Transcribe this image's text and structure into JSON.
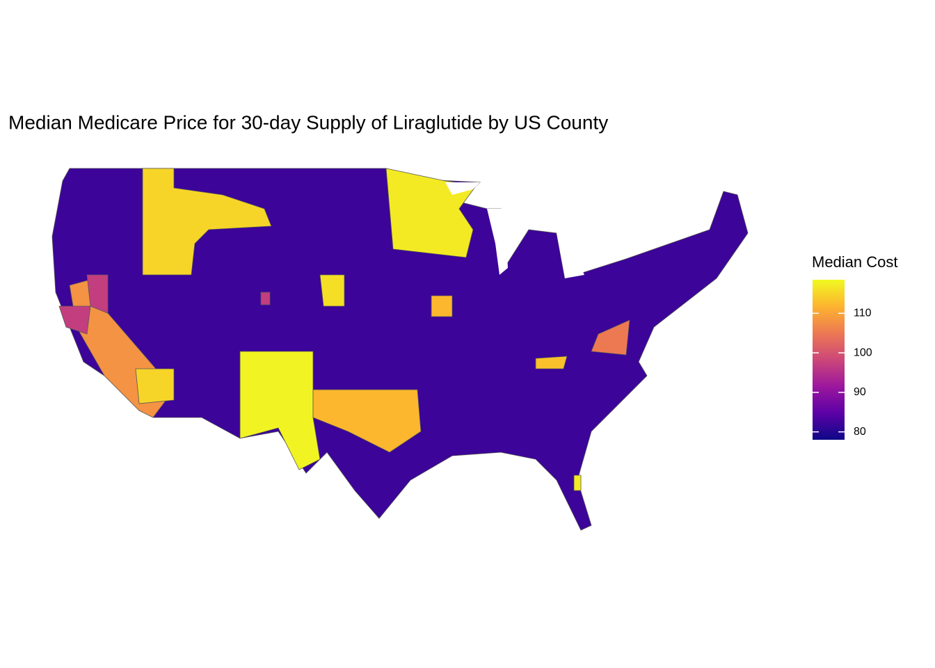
{
  "chart_data": {
    "type": "map",
    "title": "Median Medicare Price for 30-day Supply of Liraglutide by US County",
    "legend_title": "Median Cost",
    "color_scale": "plasma",
    "lim": [
      78,
      118.5
    ],
    "ticks": [
      80,
      90,
      100,
      110
    ],
    "values": [
      82,
      115,
      117,
      118,
      112,
      108,
      97,
      97,
      115,
      105,
      112,
      116,
      97,
      113,
      117
    ]
  }
}
